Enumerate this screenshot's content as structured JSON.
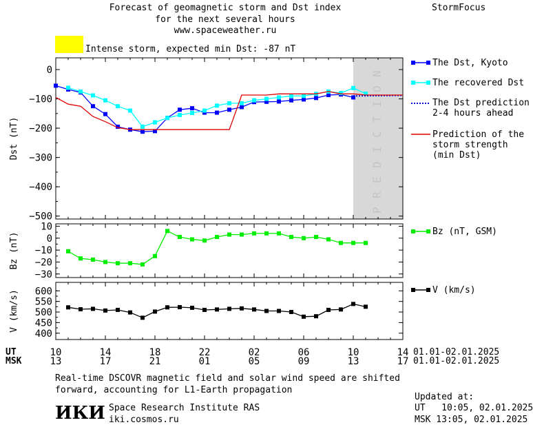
{
  "header": {
    "title_line1": "Forecast of geomagnetic storm and Dst index",
    "title_line2": "for the next several hours",
    "url": "www.spaceweather.ru",
    "brand": "StormFocus",
    "storm_label": "Intense storm, expected min Dst: -87 nT",
    "storm_color": "#ffff00"
  },
  "footer": {
    "note_line1": "Real-time DSCOVR magnetic field and solar wind speed are shifted",
    "note_line2": "forward, accounting for L1-Earth propagation",
    "institute": "Space Research Institute RAS",
    "site": "iki.cosmos.ru",
    "logo_text": "ИКИ",
    "updated_label": "Updated at:",
    "updated_ut": "UT   10:05, 02.01.2025",
    "updated_msk": "MSK 13:05, 02.01.2025"
  },
  "colors": {
    "dst_kyoto": "#0000ff",
    "recovered": "#00ffff",
    "prediction_dotted": "#0000cc",
    "storm_strength": "#e00000",
    "bz": "#00ee00",
    "v": "#000000",
    "prediction_band": "#d8d8d8"
  },
  "chart_data": [
    {
      "type": "line",
      "ylabel": "Dst (nT)",
      "ylim": [
        -510,
        40
      ],
      "yticks": [
        0,
        -100,
        -200,
        -300,
        -400,
        -500
      ],
      "xlim": [
        0,
        28
      ],
      "prediction_band": {
        "x0": 24,
        "x1": 28,
        "label": "PREDICTION"
      },
      "series": [
        {
          "name": "The Dst, Kyoto",
          "marker": "square",
          "x": [
            0,
            1,
            2,
            3,
            4,
            5,
            6,
            7,
            8,
            9,
            10,
            11,
            12,
            13,
            14,
            15,
            16,
            17,
            18,
            19,
            20,
            21,
            22,
            23,
            24
          ],
          "values": [
            -55,
            -68,
            -78,
            -125,
            -152,
            -195,
            -205,
            -212,
            -210,
            -165,
            -137,
            -132,
            -147,
            -147,
            -137,
            -128,
            -111,
            -110,
            -109,
            -105,
            -102,
            -97,
            -87,
            -85,
            -95
          ]
        },
        {
          "name": "The recovered Dst",
          "marker": "square",
          "x": [
            1,
            2,
            3,
            4,
            5,
            6,
            7,
            8,
            9,
            10,
            11,
            12,
            13,
            14,
            15,
            16,
            17,
            18,
            19,
            20,
            21,
            22,
            23,
            24,
            25
          ],
          "values": [
            -62,
            -75,
            -88,
            -105,
            -125,
            -140,
            -195,
            -180,
            -165,
            -155,
            -148,
            -140,
            -123,
            -115,
            -115,
            -105,
            -100,
            -95,
            -90,
            -90,
            -83,
            -75,
            -80,
            -63,
            -82
          ]
        },
        {
          "name": "The Dst prediction\n2-4 hours ahead",
          "style": "dotted",
          "x": [
            24,
            28
          ],
          "values": [
            -90,
            -88
          ]
        },
        {
          "name": "Prediction of the\nstorm strength\n(min Dst)",
          "style": "step",
          "x": [
            0,
            1,
            2,
            3,
            4,
            5,
            6,
            7,
            8,
            9,
            10,
            11,
            12,
            13,
            14,
            15,
            16,
            17,
            18,
            19,
            20,
            21,
            22,
            23,
            24,
            25,
            26,
            27,
            28
          ],
          "values": [
            -95,
            -118,
            -125,
            -160,
            -178,
            -198,
            -205,
            -205,
            -205,
            -205,
            -205,
            -205,
            -205,
            -205,
            -205,
            -87,
            -87,
            -87,
            -83,
            -83,
            -83,
            -83,
            -75,
            -83,
            -83,
            -87,
            -87,
            -87,
            -87
          ]
        }
      ]
    },
    {
      "type": "line",
      "ylabel": "Bz (nT)",
      "ylim": [
        -33,
        12
      ],
      "yticks": [
        10,
        0,
        -10,
        -20,
        -30
      ],
      "xlim": [
        0,
        28
      ],
      "series": [
        {
          "name": "Bz (nT, GSM)",
          "marker": "square",
          "x": [
            1,
            2,
            3,
            4,
            5,
            6,
            7,
            8,
            9,
            10,
            11,
            12,
            13,
            14,
            15,
            16,
            17,
            18,
            19,
            20,
            21,
            22,
            23,
            24,
            25
          ],
          "values": [
            -11,
            -17,
            -18,
            -20,
            -21,
            -21,
            -22,
            -15,
            6,
            1,
            -1,
            -2,
            1,
            3,
            3,
            4,
            4,
            4,
            1,
            0,
            1,
            -1,
            -4,
            -4,
            -4
          ]
        }
      ]
    },
    {
      "type": "line",
      "ylabel": "V (km/s)",
      "ylim": [
        370,
        640
      ],
      "yticks": [
        600,
        550,
        500,
        450,
        400
      ],
      "xlim": [
        0,
        28
      ],
      "series": [
        {
          "name": "V (km/s)",
          "marker": "square",
          "x": [
            1,
            2,
            3,
            4,
            5,
            6,
            7,
            8,
            9,
            10,
            11,
            12,
            13,
            14,
            15,
            16,
            17,
            18,
            19,
            20,
            21,
            22,
            23,
            24,
            25
          ],
          "values": [
            522,
            513,
            515,
            507,
            510,
            498,
            473,
            502,
            522,
            523,
            520,
            510,
            512,
            515,
            517,
            512,
            505,
            505,
            500,
            478,
            480,
            510,
            512,
            538,
            525
          ]
        }
      ]
    }
  ],
  "axes": {
    "ut_label": "UT",
    "msk_label": "MSK",
    "ut_ticks": [
      "10",
      "14",
      "18",
      "22",
      "02",
      "06",
      "10",
      "14"
    ],
    "msk_ticks": [
      "13",
      "17",
      "21",
      "01",
      "05",
      "09",
      "13",
      "17"
    ],
    "ut_range": "01.01-02.01.2025",
    "msk_range": "01.01-02.01.2025"
  }
}
